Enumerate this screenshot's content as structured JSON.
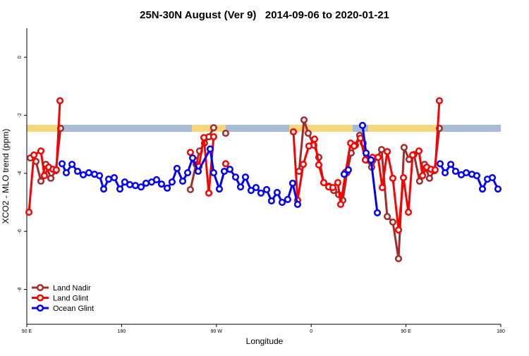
{
  "chart_data": {
    "type": "line",
    "title": "25N-30N August (Ver 9)   2014-09-06 to 2020-01-21",
    "x_label": "Longitude",
    "y_label": "XCO2 - MLO trend (ppm)",
    "xlim": [
      90,
      540
    ],
    "xticks": [
      {
        "value": 90,
        "label": "90 E"
      },
      {
        "value": 180,
        "label": "180"
      },
      {
        "value": 270,
        "label": "90 W"
      },
      {
        "value": 360,
        "label": "0"
      },
      {
        "value": 450,
        "label": "90 E"
      },
      {
        "value": 540,
        "label": "180"
      }
    ],
    "ylim": [
      -9.2,
      1.0
    ],
    "yticks": [
      0,
      -2,
      -4,
      -6,
      -8
    ],
    "legend": "bottom-left",
    "series": [
      {
        "name": "Land Nadir",
        "color": "#a52a2a",
        "x": [
          93.3,
          98.7,
          103.4,
          108.1,
          112.8,
          117.5,
          122.1,
          null,
          245.3,
          250.7,
          254,
          258.7,
          262.8,
          267.4,
          null,
          278.8,
          null,
          348.5,
          353.2,
          357.2,
          362.5,
          367.2,
          371.9,
          376.6,
          381.3,
          386,
          390,
          394,
          398,
          402,
          406,
          409.4,
          412.8,
          417.4,
          426.8,
          432.2,
          437.5,
          442.9,
          448.2,
          452.9,
          457.6,
          462.9,
          467.6,
          472.3,
          477,
          481.7
        ],
        "values": [
          -3.47,
          -3.59,
          -4.27,
          -3.69,
          -4.17,
          -3.91,
          -2.45,
          null,
          -4.56,
          -3.69,
          -3.23,
          -2.96,
          -2.74,
          -2.43,
          null,
          -2.62,
          null,
          -3.93,
          -2.16,
          -2.62,
          -3.03,
          -3.45,
          -4.32,
          -4.44,
          -4.59,
          -4.73,
          -4.93,
          -3.98,
          -3.3,
          -3.03,
          -2.69,
          -2.96,
          -3.54,
          -3.79,
          -3.18,
          -5.49,
          -5.68,
          -6.94,
          -3.11,
          -3.52,
          -3.35,
          -4.27,
          -3.69,
          -4.17,
          -3.91,
          -2.45
        ]
      },
      {
        "name": "Land Glint",
        "color": "#ff0000",
        "x": [
          92,
          96.7,
          103.4,
          106.7,
          110.8,
          114.8,
          118.1,
          121.5,
          null,
          245.3,
          249.4,
          253.4,
          258.1,
          262.8,
          267.4,
          null,
          278.8,
          null,
          343.1,
          347.1,
          352.5,
          357.8,
          363.2,
          367.2,
          371.9,
          376.6,
          380.6,
          385.3,
          388,
          392.7,
          397.4,
          400.7,
          406.7,
          411.4,
          418.1,
          423.5,
          427.5,
          432.2,
          437.5,
          442.9,
          447.6,
          452.3,
          456.3,
          462.3,
          465.7,
          469.7,
          473.7,
          477.7,
          481.7
        ],
        "values": [
          -5.34,
          -3.37,
          -3.23,
          -4.08,
          -3.79,
          -3.86,
          -3.88,
          -1.5,
          null,
          -3.28,
          -3.54,
          -3.76,
          -2.77,
          -4.68,
          -2.74,
          null,
          -3.67,
          null,
          -2.57,
          -4.93,
          -3.69,
          -3.06,
          -2.82,
          -3.71,
          -4.32,
          -4.47,
          -4.49,
          -4.32,
          -5.07,
          -3.96,
          -2.96,
          -3.06,
          -2.79,
          -3.54,
          -3.45,
          -3.45,
          -4.49,
          -3.25,
          -4.17,
          -5.95,
          -4.15,
          -5.34,
          -3.37,
          -3.23,
          -4.08,
          -3.79,
          -3.86,
          -3.88,
          -1.5
        ]
      },
      {
        "name": "Ocean Glint",
        "color": "#0000ff",
        "x": [
          123.5,
          127.5,
          132.9,
          138.2,
          143.6,
          148.9,
          154.3,
          159,
          163,
          167.7,
          173,
          178.4,
          183,
          187.8,
          193.1,
          198.5,
          203.2,
          208.5,
          213.2,
          217.9,
          223.3,
          227.9,
          232.6,
          238,
          242.7,
          247.4,
          252.7,
          264.1,
          267.4,
          272.8,
          277.5,
          282.8,
          288.2,
          292.9,
          297.6,
          302.9,
          307.6,
          312.3,
          317.7,
          322.3,
          327.7,
          332.4,
          337.7,
          342.4,
          347.1,
          null,
          391.3,
          395.3,
          null,
          408.7,
          412.1,
          416.8,
          422.8,
          null,
          482.4,
          487.1,
          492.5,
          497.1,
          502.5,
          507.2,
          512.5,
          517.2,
          522.6,
          527.3,
          532,
          537.3
        ],
        "values": [
          -3.67,
          -3.98,
          -3.69,
          -3.93,
          -4.05,
          -3.98,
          -4.03,
          -4.08,
          -4.54,
          -4.2,
          -4.15,
          -4.54,
          -4.3,
          -4.39,
          -4.42,
          -4.47,
          -4.34,
          -4.3,
          -4.22,
          -4.37,
          -4.51,
          -4.3,
          -3.83,
          -4.27,
          -3.98,
          -3.47,
          -3.93,
          -3.16,
          -3.98,
          -4.54,
          -3.93,
          -3.86,
          -4.13,
          -4.47,
          -4.13,
          -4.59,
          -4.49,
          -4.68,
          -4.56,
          -4.95,
          -4.66,
          -5.0,
          -4.9,
          -4.34,
          -5.07,
          null,
          -4.03,
          -3.88,
          null,
          -2.35,
          -3.3,
          -3.54,
          -5.36,
          null,
          -3.67,
          -3.98,
          -3.69,
          -3.93,
          -4.05,
          -3.98,
          -4.03,
          -4.08,
          -4.54,
          -4.2,
          -4.15,
          -4.54
        ]
      }
    ]
  }
}
